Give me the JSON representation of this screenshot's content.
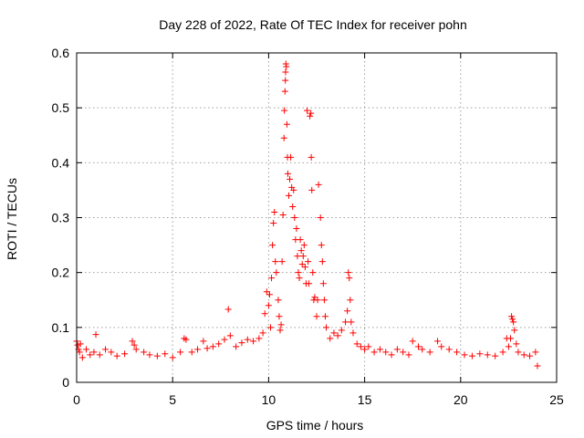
{
  "chart_data": {
    "type": "scatter",
    "title": "Day 228 of 2022, Rate Of TEC Index for receiver pohn",
    "xlabel": "GPS time / hours",
    "ylabel": "ROTI / TECUs",
    "xlim": [
      0,
      25
    ],
    "ylim": [
      0,
      0.6
    ],
    "xticks": [
      0,
      5,
      10,
      15,
      20,
      25
    ],
    "xtick_labels": [
      "0",
      "5",
      "10",
      "15",
      "20",
      "25"
    ],
    "yticks": [
      0,
      0.1,
      0.2,
      0.3,
      0.4,
      0.5,
      0.6
    ],
    "ytick_labels": [
      "0",
      "0.1",
      "0.2",
      "0.3",
      "0.4",
      "0.5",
      "0.6"
    ],
    "grid": true,
    "marker": "+",
    "color": "#ff0000",
    "series": [
      {
        "name": "pohn",
        "points": [
          [
            0.0,
            0.075
          ],
          [
            0.05,
            0.068
          ],
          [
            0.1,
            0.06
          ],
          [
            0.15,
            0.055
          ],
          [
            0.2,
            0.07
          ],
          [
            0.3,
            0.045
          ],
          [
            0.5,
            0.06
          ],
          [
            0.7,
            0.05
          ],
          [
            0.9,
            0.055
          ],
          [
            1.0,
            0.087
          ],
          [
            1.2,
            0.05
          ],
          [
            1.5,
            0.06
          ],
          [
            1.8,
            0.055
          ],
          [
            2.1,
            0.048
          ],
          [
            2.5,
            0.052
          ],
          [
            2.9,
            0.075
          ],
          [
            3.0,
            0.068
          ],
          [
            3.1,
            0.06
          ],
          [
            3.5,
            0.055
          ],
          [
            3.8,
            0.05
          ],
          [
            4.2,
            0.048
          ],
          [
            4.6,
            0.052
          ],
          [
            5.0,
            0.045
          ],
          [
            5.4,
            0.055
          ],
          [
            5.6,
            0.08
          ],
          [
            5.7,
            0.078
          ],
          [
            6.0,
            0.055
          ],
          [
            6.3,
            0.06
          ],
          [
            6.6,
            0.075
          ],
          [
            6.8,
            0.062
          ],
          [
            7.1,
            0.065
          ],
          [
            7.4,
            0.07
          ],
          [
            7.7,
            0.078
          ],
          [
            7.9,
            0.133
          ],
          [
            8.0,
            0.085
          ],
          [
            8.3,
            0.065
          ],
          [
            8.6,
            0.072
          ],
          [
            8.9,
            0.078
          ],
          [
            9.2,
            0.075
          ],
          [
            9.5,
            0.08
          ],
          [
            9.7,
            0.09
          ],
          [
            9.8,
            0.125
          ],
          [
            9.9,
            0.165
          ],
          [
            10.0,
            0.14
          ],
          [
            10.05,
            0.16
          ],
          [
            10.1,
            0.1
          ],
          [
            10.15,
            0.19
          ],
          [
            10.2,
            0.25
          ],
          [
            10.25,
            0.29
          ],
          [
            10.3,
            0.31
          ],
          [
            10.35,
            0.22
          ],
          [
            10.4,
            0.2
          ],
          [
            10.5,
            0.15
          ],
          [
            10.55,
            0.12
          ],
          [
            10.6,
            0.095
          ],
          [
            10.65,
            0.105
          ],
          [
            10.7,
            0.22
          ],
          [
            10.75,
            0.305
          ],
          [
            10.8,
            0.445
          ],
          [
            10.82,
            0.495
          ],
          [
            10.85,
            0.53
          ],
          [
            10.87,
            0.55
          ],
          [
            10.88,
            0.565
          ],
          [
            10.9,
            0.58
          ],
          [
            10.92,
            0.575
          ],
          [
            10.95,
            0.47
          ],
          [
            10.98,
            0.41
          ],
          [
            11.0,
            0.38
          ],
          [
            11.05,
            0.34
          ],
          [
            11.1,
            0.37
          ],
          [
            11.15,
            0.41
          ],
          [
            11.2,
            0.355
          ],
          [
            11.25,
            0.32
          ],
          [
            11.3,
            0.35
          ],
          [
            11.35,
            0.3
          ],
          [
            11.4,
            0.26
          ],
          [
            11.45,
            0.28
          ],
          [
            11.5,
            0.23
          ],
          [
            11.55,
            0.2
          ],
          [
            11.6,
            0.19
          ],
          [
            11.65,
            0.26
          ],
          [
            11.7,
            0.24
          ],
          [
            11.75,
            0.215
          ],
          [
            11.8,
            0.23
          ],
          [
            11.85,
            0.25
          ],
          [
            11.9,
            0.21
          ],
          [
            11.95,
            0.18
          ],
          [
            12.0,
            0.495
          ],
          [
            12.05,
            0.22
          ],
          [
            12.1,
            0.18
          ],
          [
            12.15,
            0.485
          ],
          [
            12.2,
            0.49
          ],
          [
            12.22,
            0.41
          ],
          [
            12.25,
            0.35
          ],
          [
            12.3,
            0.2
          ],
          [
            12.35,
            0.15
          ],
          [
            12.4,
            0.155
          ],
          [
            12.5,
            0.12
          ],
          [
            12.55,
            0.15
          ],
          [
            12.6,
            0.36
          ],
          [
            12.7,
            0.3
          ],
          [
            12.75,
            0.25
          ],
          [
            12.8,
            0.22
          ],
          [
            12.85,
            0.18
          ],
          [
            12.9,
            0.15
          ],
          [
            12.95,
            0.12
          ],
          [
            13.0,
            0.1
          ],
          [
            13.2,
            0.08
          ],
          [
            13.4,
            0.09
          ],
          [
            13.6,
            0.085
          ],
          [
            13.8,
            0.095
          ],
          [
            14.0,
            0.11
          ],
          [
            14.1,
            0.13
          ],
          [
            14.15,
            0.2
          ],
          [
            14.2,
            0.19
          ],
          [
            14.25,
            0.15
          ],
          [
            14.3,
            0.11
          ],
          [
            14.4,
            0.09
          ],
          [
            14.6,
            0.07
          ],
          [
            14.8,
            0.065
          ],
          [
            15.0,
            0.06
          ],
          [
            15.2,
            0.065
          ],
          [
            15.5,
            0.055
          ],
          [
            15.8,
            0.06
          ],
          [
            16.1,
            0.055
          ],
          [
            16.4,
            0.05
          ],
          [
            16.7,
            0.06
          ],
          [
            17.0,
            0.055
          ],
          [
            17.3,
            0.05
          ],
          [
            17.5,
            0.075
          ],
          [
            17.8,
            0.065
          ],
          [
            18.0,
            0.06
          ],
          [
            18.4,
            0.055
          ],
          [
            18.8,
            0.075
          ],
          [
            19.0,
            0.065
          ],
          [
            19.4,
            0.06
          ],
          [
            19.8,
            0.055
          ],
          [
            20.2,
            0.05
          ],
          [
            20.6,
            0.048
          ],
          [
            21.0,
            0.052
          ],
          [
            21.4,
            0.05
          ],
          [
            21.8,
            0.048
          ],
          [
            22.2,
            0.055
          ],
          [
            22.4,
            0.08
          ],
          [
            22.5,
            0.065
          ],
          [
            22.6,
            0.08
          ],
          [
            22.65,
            0.12
          ],
          [
            22.7,
            0.115
          ],
          [
            22.75,
            0.11
          ],
          [
            22.8,
            0.095
          ],
          [
            22.9,
            0.07
          ],
          [
            23.0,
            0.055
          ],
          [
            23.3,
            0.05
          ],
          [
            23.6,
            0.048
          ],
          [
            23.9,
            0.055
          ],
          [
            24.0,
            0.03
          ]
        ]
      }
    ]
  }
}
